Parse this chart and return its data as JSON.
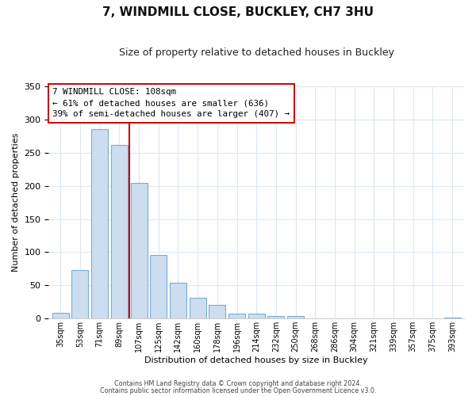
{
  "title": "7, WINDMILL CLOSE, BUCKLEY, CH7 3HU",
  "subtitle": "Size of property relative to detached houses in Buckley",
  "xlabel": "Distribution of detached houses by size in Buckley",
  "ylabel": "Number of detached properties",
  "bar_labels": [
    "35sqm",
    "53sqm",
    "71sqm",
    "89sqm",
    "107sqm",
    "125sqm",
    "142sqm",
    "160sqm",
    "178sqm",
    "196sqm",
    "214sqm",
    "232sqm",
    "250sqm",
    "268sqm",
    "286sqm",
    "304sqm",
    "321sqm",
    "339sqm",
    "357sqm",
    "375sqm",
    "393sqm"
  ],
  "bar_values": [
    9,
    73,
    285,
    261,
    204,
    96,
    54,
    31,
    21,
    8,
    8,
    4,
    4,
    0,
    0,
    0,
    0,
    0,
    0,
    0,
    2
  ],
  "bar_color": "#ccddf0",
  "bar_edge_color": "#7aadd4",
  "vline_x": 3.5,
  "vline_color": "#cc0000",
  "annotation_title": "7 WINDMILL CLOSE: 108sqm",
  "annotation_line1": "← 61% of detached houses are smaller (636)",
  "annotation_line2": "39% of semi-detached houses are larger (407) →",
  "annotation_box_color": "#ffffff",
  "annotation_box_edge": "#cc0000",
  "ylim": [
    0,
    350
  ],
  "yticks": [
    0,
    50,
    100,
    150,
    200,
    250,
    300,
    350
  ],
  "footer1": "Contains HM Land Registry data © Crown copyright and database right 2024.",
  "footer2": "Contains public sector information licensed under the Open Government Licence v3.0.",
  "bg_color": "#ffffff",
  "grid_color": "#dce8f5"
}
